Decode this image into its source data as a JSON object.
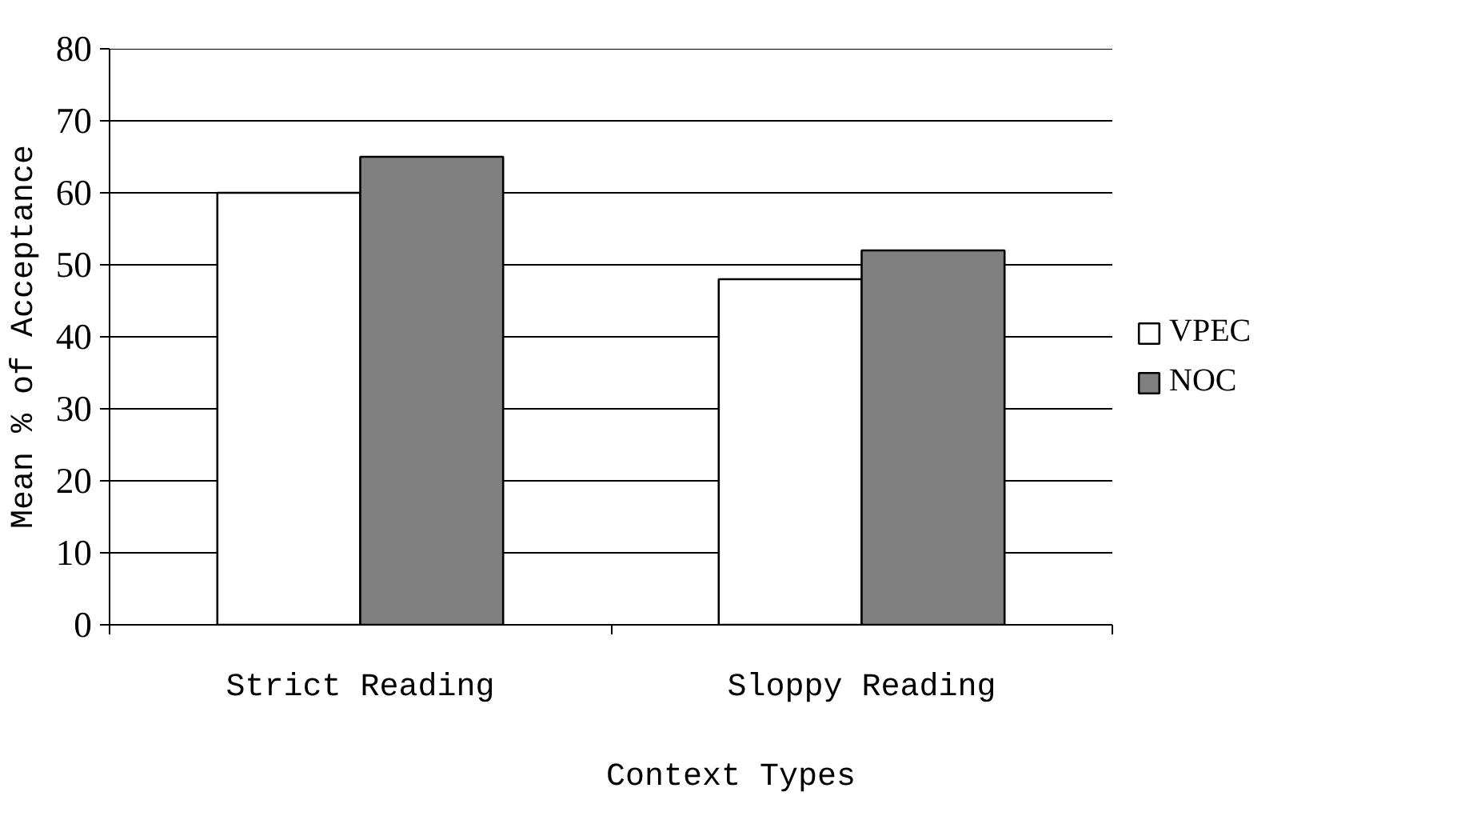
{
  "chart_data": {
    "type": "bar",
    "xlabel": "Context Types",
    "ylabel": "Mean % of Acceptance",
    "categories": [
      "Strict Reading",
      "Sloppy Reading"
    ],
    "series": [
      {
        "name": "VPEC",
        "color": "#ffffff",
        "values": [
          60,
          48
        ]
      },
      {
        "name": "NOC",
        "color": "#808080",
        "values": [
          65,
          52
        ]
      }
    ],
    "ylim": [
      0,
      80
    ],
    "yticks": [
      0,
      10,
      20,
      30,
      40,
      50,
      60,
      70,
      80
    ],
    "grid": "y",
    "legend": "right"
  }
}
